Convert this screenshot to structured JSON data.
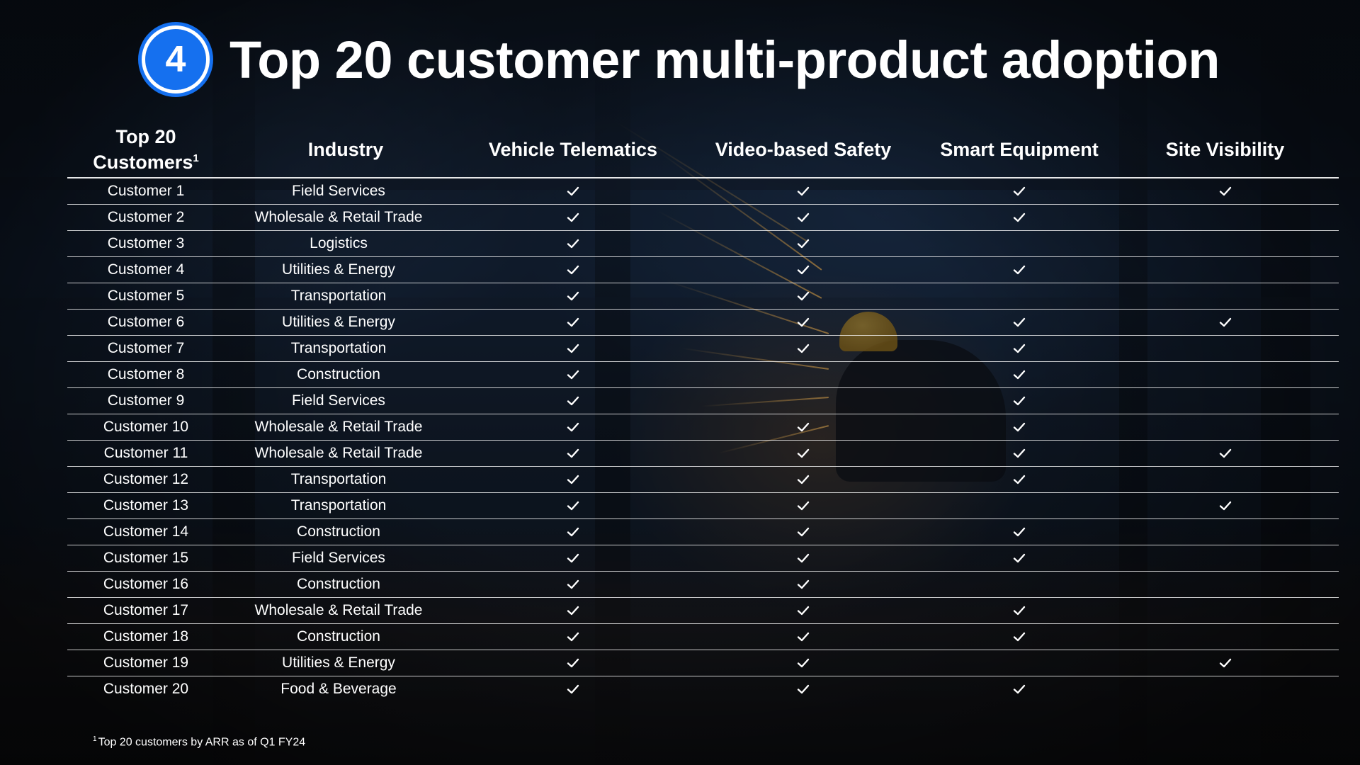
{
  "header": {
    "step_number": "4",
    "title": "Top 20 customer multi-product adoption"
  },
  "table": {
    "columns": {
      "customers_label": "Top 20 Customers",
      "customers_footnote_mark": "1",
      "industry": "Industry",
      "vehicle_telematics": "Vehicle Telematics",
      "video_safety": "Video-based Safety",
      "smart_equipment": "Smart Equipment",
      "site_visibility": "Site Visibility"
    },
    "check_icon": "checkmark-icon",
    "rows": [
      {
        "customer": "Customer 1",
        "industry": "Field Services",
        "vehicle_telematics": true,
        "video_safety": true,
        "smart_equipment": true,
        "site_visibility": true
      },
      {
        "customer": "Customer 2",
        "industry": "Wholesale & Retail Trade",
        "vehicle_telematics": true,
        "video_safety": true,
        "smart_equipment": true,
        "site_visibility": false
      },
      {
        "customer": "Customer 3",
        "industry": "Logistics",
        "vehicle_telematics": true,
        "video_safety": true,
        "smart_equipment": false,
        "site_visibility": false
      },
      {
        "customer": "Customer 4",
        "industry": "Utilities & Energy",
        "vehicle_telematics": true,
        "video_safety": true,
        "smart_equipment": true,
        "site_visibility": false
      },
      {
        "customer": "Customer 5",
        "industry": "Transportation",
        "vehicle_telematics": true,
        "video_safety": true,
        "smart_equipment": false,
        "site_visibility": false
      },
      {
        "customer": "Customer 6",
        "industry": "Utilities & Energy",
        "vehicle_telematics": true,
        "video_safety": true,
        "smart_equipment": true,
        "site_visibility": true
      },
      {
        "customer": "Customer 7",
        "industry": "Transportation",
        "vehicle_telematics": true,
        "video_safety": true,
        "smart_equipment": true,
        "site_visibility": false
      },
      {
        "customer": "Customer 8",
        "industry": "Construction",
        "vehicle_telematics": true,
        "video_safety": false,
        "smart_equipment": true,
        "site_visibility": false
      },
      {
        "customer": "Customer 9",
        "industry": "Field Services",
        "vehicle_telematics": true,
        "video_safety": false,
        "smart_equipment": true,
        "site_visibility": false
      },
      {
        "customer": "Customer 10",
        "industry": "Wholesale & Retail Trade",
        "vehicle_telematics": true,
        "video_safety": true,
        "smart_equipment": true,
        "site_visibility": false
      },
      {
        "customer": "Customer 11",
        "industry": "Wholesale & Retail Trade",
        "vehicle_telematics": true,
        "video_safety": true,
        "smart_equipment": true,
        "site_visibility": true
      },
      {
        "customer": "Customer 12",
        "industry": "Transportation",
        "vehicle_telematics": true,
        "video_safety": true,
        "smart_equipment": true,
        "site_visibility": false
      },
      {
        "customer": "Customer 13",
        "industry": "Transportation",
        "vehicle_telematics": true,
        "video_safety": true,
        "smart_equipment": false,
        "site_visibility": true
      },
      {
        "customer": "Customer 14",
        "industry": "Construction",
        "vehicle_telematics": true,
        "video_safety": true,
        "smart_equipment": true,
        "site_visibility": false
      },
      {
        "customer": "Customer 15",
        "industry": "Field Services",
        "vehicle_telematics": true,
        "video_safety": true,
        "smart_equipment": true,
        "site_visibility": false
      },
      {
        "customer": "Customer 16",
        "industry": "Construction",
        "vehicle_telematics": true,
        "video_safety": true,
        "smart_equipment": false,
        "site_visibility": false
      },
      {
        "customer": "Customer 17",
        "industry": "Wholesale & Retail Trade",
        "vehicle_telematics": true,
        "video_safety": true,
        "smart_equipment": true,
        "site_visibility": false
      },
      {
        "customer": "Customer 18",
        "industry": "Construction",
        "vehicle_telematics": true,
        "video_safety": true,
        "smart_equipment": true,
        "site_visibility": false
      },
      {
        "customer": "Customer 19",
        "industry": "Utilities & Energy",
        "vehicle_telematics": true,
        "video_safety": true,
        "smart_equipment": false,
        "site_visibility": true
      },
      {
        "customer": "Customer 20",
        "industry": "Food & Beverage",
        "vehicle_telematics": true,
        "video_safety": true,
        "smart_equipment": true,
        "site_visibility": false
      }
    ]
  },
  "footnote": {
    "mark": "1",
    "text": "Top 20 customers by ARR as of Q1 FY24"
  },
  "colors": {
    "badge_blue": "#1570ef",
    "text": "#ffffff",
    "background": "#0d1420"
  }
}
